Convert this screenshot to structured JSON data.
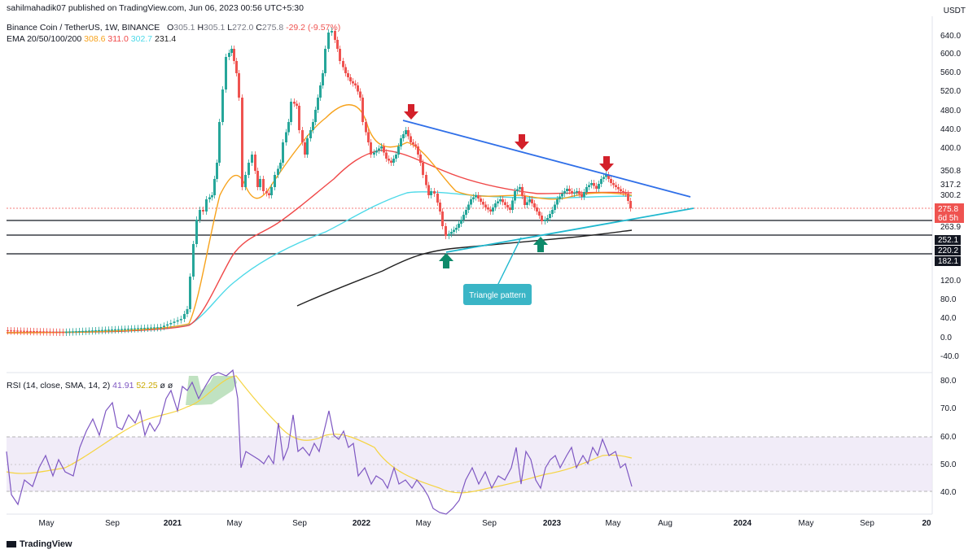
{
  "header": {
    "publisher": "sahilmahadik07 published on TradingView.com, Jun 06, 2023 00:56 UTC+5:30",
    "symbol": "Binance Coin / TetherUS, 1W, BINANCE",
    "ohlc": {
      "O": "305.1",
      "H": "305.1",
      "L": "272.0",
      "C": "275.8",
      "change": "-29.2 (-9.57%)"
    },
    "ema_label": "EMA 20/50/100/200",
    "ema_values": [
      "308.6",
      "311.0",
      "302.7",
      "231.4"
    ]
  },
  "rsi_header": {
    "label": "RSI (14, close, SMA, 14, 2)",
    "values": [
      "41.91",
      "52.25",
      "ø",
      "ø"
    ]
  },
  "brand": "TradingView",
  "unit": "USDT",
  "price_badge": {
    "value": "275.8",
    "countdown": "6d 5h"
  },
  "level_badges": [
    "252.1",
    "220.2",
    "182.1"
  ],
  "annotation": {
    "text": "Triangle pattern"
  },
  "colors": {
    "up": "#26a69a",
    "down": "#ef5350",
    "ema20": "#f7a21b",
    "ema50": "#f04848",
    "ema100": "#4dd9e8",
    "ema200": "#222222",
    "trend_down": "#2f6fe8",
    "trend_up": "#1fb8cf",
    "arrow_down": "#d3202a",
    "arrow_up": "#0e8a6a",
    "rsi": "#7e57c2",
    "rsi_ma": "#f5d442",
    "rsi_band": "#ede7f6"
  },
  "chart_data": [
    {
      "type": "candlestick",
      "title": "Binance Coin / TetherUS, 1W, BINANCE",
      "x_ticks": [
        "May",
        "Sep",
        "2021",
        "May",
        "Sep",
        "2022",
        "May",
        "Sep",
        "2023",
        "May",
        "Aug",
        "2024",
        "May",
        "Sep",
        "20"
      ],
      "y_ticks": [
        "640.0",
        "600.0",
        "560.0",
        "520.0",
        "480.0",
        "440.0",
        "400.0",
        "350.8",
        "317.2",
        "300.2",
        "263.9",
        "120.0",
        "80.0",
        "40.0",
        "0.0",
        "-40.0"
      ],
      "ylim": [
        -60,
        660
      ],
      "last_close": 275.8,
      "horizontal_levels": [
        252.1,
        220.2,
        182.1
      ],
      "candles_note": "weekly candles, approximate shape",
      "resistance_line": {
        "from": {
          "date": "2022-04",
          "price": 460
        },
        "to": {
          "date": "2023-08",
          "price": 300
        }
      },
      "support_line": {
        "from": {
          "date": "2022-06",
          "price": 200
        },
        "to": {
          "date": "2023-08",
          "price": 285
        }
      },
      "sell_arrows": [
        "2022-04",
        "2022-11",
        "2023-04"
      ],
      "buy_arrows": [
        "2022-06",
        "2022-12"
      ],
      "ema": {
        "20": 308.6,
        "50": 311.0,
        "100": 302.7,
        "200": 231.4
      }
    },
    {
      "type": "line",
      "title": "RSI (14, close, SMA, 14, 2)",
      "y_ticks": [
        "80.0",
        "70.0",
        "60.0",
        "50.0",
        "40.0"
      ],
      "ylim": [
        33,
        82
      ],
      "band": [
        40,
        60
      ],
      "rsi_last": 41.91,
      "sma_last": 52.25
    }
  ]
}
